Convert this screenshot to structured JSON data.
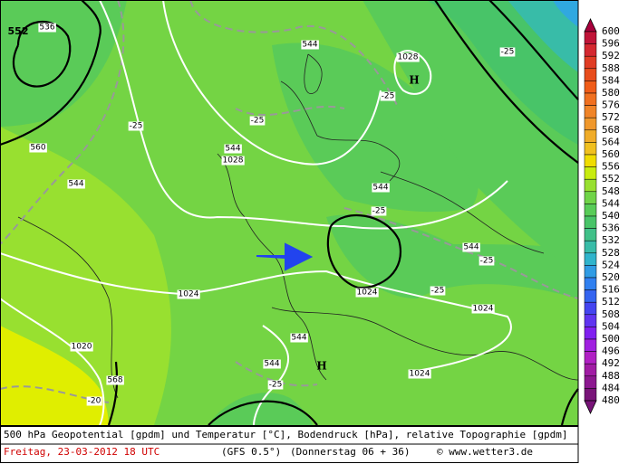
{
  "colorbar": {
    "labels": [
      600,
      596,
      592,
      588,
      584,
      580,
      576,
      572,
      568,
      564,
      560,
      556,
      552,
      548,
      544,
      540,
      536,
      532,
      528,
      524,
      520,
      516,
      512,
      508,
      504,
      500,
      496,
      492,
      488,
      484,
      480
    ],
    "colors": [
      "#a8003c",
      "#c01438",
      "#d42830",
      "#e03c24",
      "#e84c1c",
      "#f05c18",
      "#f07020",
      "#f08428",
      "#f0982c",
      "#f0ac28",
      "#f0c020",
      "#f0dc00",
      "#c8ec10",
      "#98e030",
      "#70d448",
      "#58cc58",
      "#48c468",
      "#40c088",
      "#38bca8",
      "#30b4cc",
      "#309ce4",
      "#3080f0",
      "#3464f0",
      "#4444f0",
      "#6034f0",
      "#8020f0",
      "#a020e0",
      "#b020c4",
      "#a01ca4",
      "#8c1890",
      "#781478"
    ]
  },
  "map_labels": [
    "552",
    "536",
    "560",
    "544",
    "-25",
    "544",
    "1028",
    "-25",
    "H",
    "-25",
    "544",
    "1028",
    "-25",
    "544",
    "-25",
    "544",
    "-25",
    "-25",
    "1024",
    "1024",
    "1024",
    "544",
    "1020",
    "568",
    "544",
    "H",
    "-25",
    "1024",
    "-20"
  ],
  "footer": {
    "line1": "500 hPa Geopotential [gpdm] und Temperatur [°C], Bodendruck [hPa], relative Topographie [gpdm]",
    "date": "Freitag, 23-03-2012  18 UTC",
    "model": "(GFS 0.5°)",
    "run": "(Donnerstag 06 + 36)",
    "credit": "© www.wetter3.de"
  }
}
